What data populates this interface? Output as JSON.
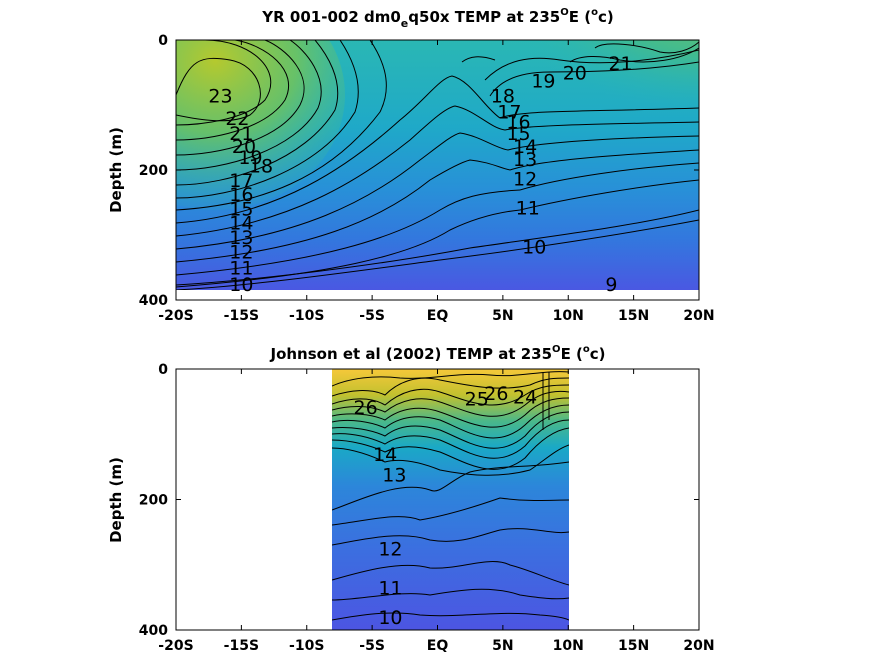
{
  "chart_data": [
    {
      "type": "contour",
      "title": "YR 001-002 dm0_eq50x TEMP at 235°E (°c)",
      "title_parts": {
        "a": "YR 001-002 dm0",
        "sub": "e",
        "b": "q50x TEMP at 235",
        "sup1": "O",
        "c": "E (",
        "sup2": "o",
        "d": "c)"
      },
      "ylabel": "Depth (m)",
      "xlim": [
        -20,
        20
      ],
      "ylim": [
        400,
        0
      ],
      "data_extent": {
        "x": [
          -20,
          20
        ],
        "y": [
          0,
          380
        ]
      },
      "x_ticks": [
        -20,
        -15,
        -10,
        -5,
        0,
        5,
        10,
        15,
        20
      ],
      "x_tick_labels": [
        "-20S",
        "-15S",
        "-10S",
        "-5S",
        "EQ",
        "5N",
        "10N",
        "15N",
        "20N"
      ],
      "y_ticks": [
        0,
        200,
        400
      ],
      "y_tick_labels": [
        "0",
        "200",
        "400"
      ],
      "contour_levels": [
        9,
        10,
        11,
        12,
        13,
        14,
        15,
        16,
        17,
        18,
        19,
        20,
        21,
        22,
        23
      ],
      "contour_labels": [
        {
          "text": "23",
          "x": -16.6,
          "y": 85
        },
        {
          "text": "22",
          "x": -15.3,
          "y": 120
        },
        {
          "text": "21",
          "x": -15.0,
          "y": 143
        },
        {
          "text": "20",
          "x": -14.8,
          "y": 163
        },
        {
          "text": "19",
          "x": -14.3,
          "y": 180
        },
        {
          "text": "18",
          "x": -13.5,
          "y": 193
        },
        {
          "text": "17",
          "x": -15.0,
          "y": 215
        },
        {
          "text": "16",
          "x": -15.0,
          "y": 237
        },
        {
          "text": "15",
          "x": -15.0,
          "y": 259
        },
        {
          "text": "14",
          "x": -15.0,
          "y": 281
        },
        {
          "text": "13",
          "x": -15.0,
          "y": 303
        },
        {
          "text": "12",
          "x": -15.0,
          "y": 325
        },
        {
          "text": "11",
          "x": -15.0,
          "y": 350
        },
        {
          "text": "10",
          "x": -15.0,
          "y": 375
        },
        {
          "text": "21",
          "x": 14.0,
          "y": 35
        },
        {
          "text": "20",
          "x": 10.5,
          "y": 50
        },
        {
          "text": "19",
          "x": 8.1,
          "y": 62
        },
        {
          "text": "18",
          "x": 5.0,
          "y": 85
        },
        {
          "text": "17",
          "x": 5.5,
          "y": 110
        },
        {
          "text": "16",
          "x": 6.2,
          "y": 125
        },
        {
          "text": "15",
          "x": 6.2,
          "y": 143
        },
        {
          "text": "14",
          "x": 6.7,
          "y": 163
        },
        {
          "text": "13",
          "x": 6.7,
          "y": 183
        },
        {
          "text": "12",
          "x": 6.7,
          "y": 213
        },
        {
          "text": "11",
          "x": 6.9,
          "y": 258
        },
        {
          "text": "10",
          "x": 7.4,
          "y": 318
        },
        {
          "text": "9",
          "x": 13.3,
          "y": 375
        }
      ]
    },
    {
      "type": "contour",
      "title": "Johnson et al (2002) TEMP at 235°E (°c)",
      "title_parts": {
        "a": "Johnson et al (2002) TEMP at 235",
        "sup1": "O",
        "c": "E (",
        "sup2": "o",
        "d": "c)"
      },
      "ylabel": "Depth (m)",
      "xlim": [
        -20,
        20
      ],
      "ylim": [
        400,
        0
      ],
      "data_extent": {
        "x": [
          -8,
          10
        ],
        "y": [
          0,
          400
        ]
      },
      "x_ticks": [
        -20,
        -15,
        -10,
        -5,
        0,
        5,
        10,
        15,
        20
      ],
      "x_tick_labels": [
        "-20S",
        "-15S",
        "-10S",
        "-5S",
        "EQ",
        "5N",
        "10N",
        "15N",
        "20N"
      ],
      "y_ticks": [
        0,
        200,
        400
      ],
      "y_tick_labels": [
        "0",
        "200",
        "400"
      ],
      "contour_levels": [
        10,
        11,
        12,
        13,
        14,
        15,
        16,
        17,
        18,
        19,
        20,
        21,
        22,
        23,
        24,
        25,
        26
      ],
      "contour_labels": [
        {
          "text": "26",
          "x": -5.5,
          "y": 58
        },
        {
          "text": "25",
          "x": 3.0,
          "y": 45
        },
        {
          "text": "26",
          "x": 4.5,
          "y": 37
        },
        {
          "text": "24",
          "x": 6.7,
          "y": 42
        },
        {
          "text": "14",
          "x": -4.0,
          "y": 130
        },
        {
          "text": "13",
          "x": -3.3,
          "y": 162
        },
        {
          "text": "12",
          "x": -3.6,
          "y": 275
        },
        {
          "text": "11",
          "x": -3.6,
          "y": 335
        },
        {
          "text": "10",
          "x": -3.6,
          "y": 380
        }
      ]
    }
  ]
}
